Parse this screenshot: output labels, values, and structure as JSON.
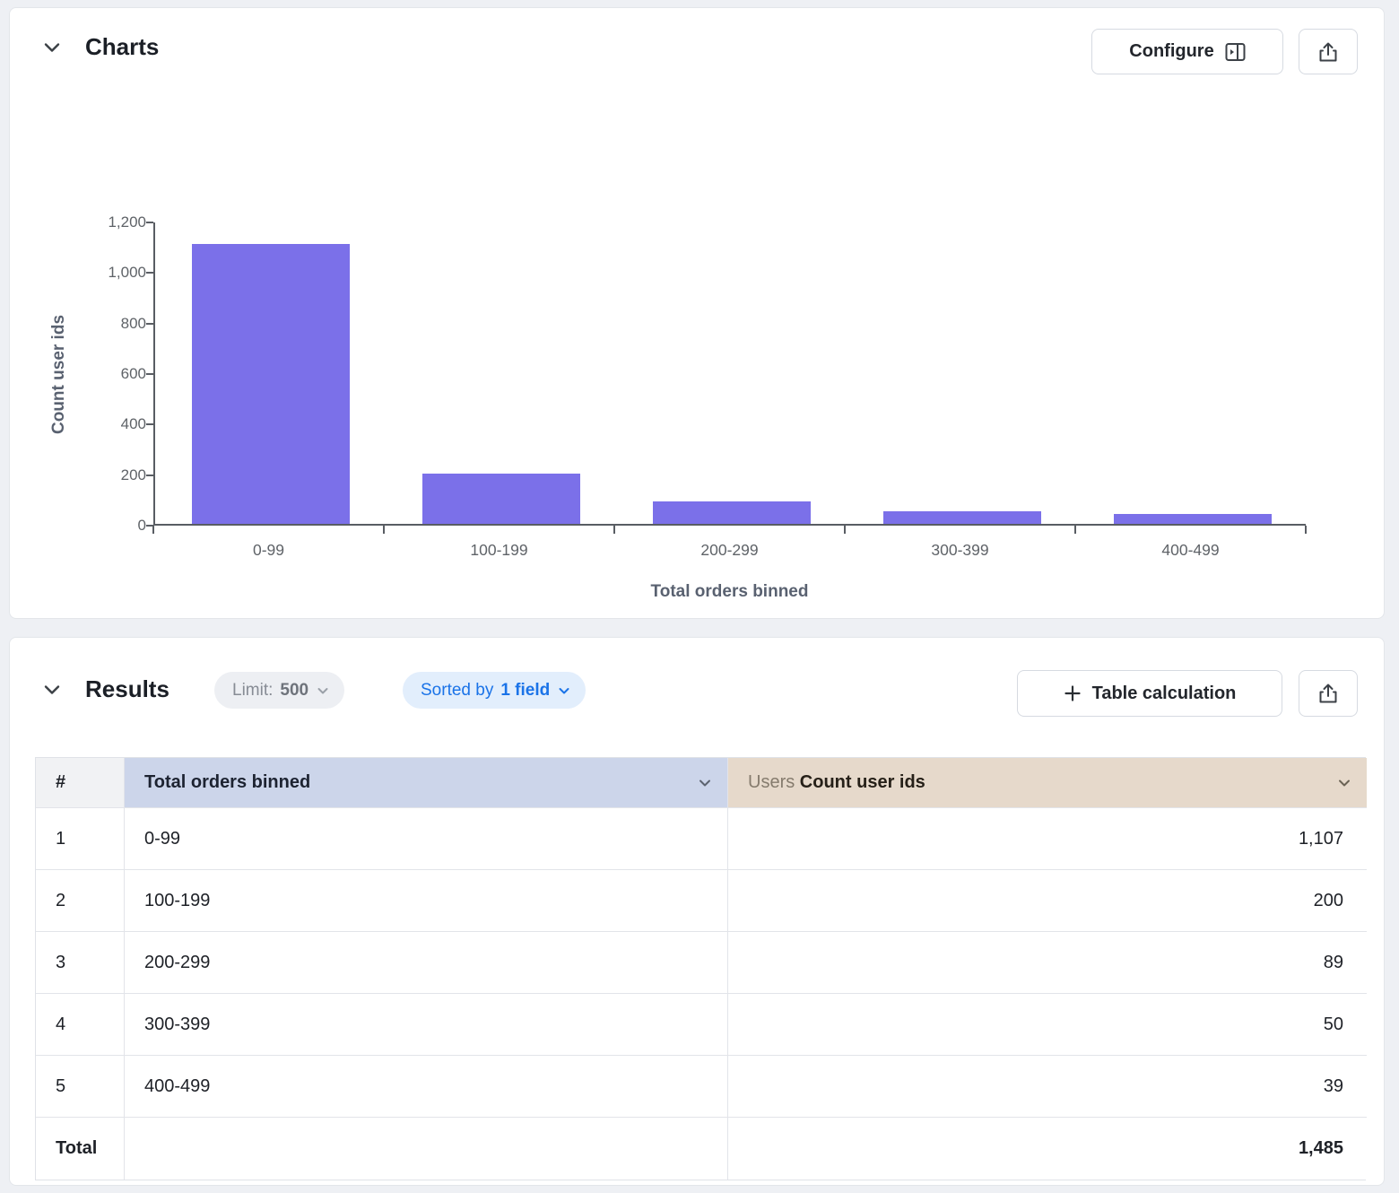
{
  "charts_panel": {
    "title": "Charts",
    "configure_label": "Configure"
  },
  "results_panel": {
    "title": "Results",
    "limit_label": "Limit:",
    "limit_value": "500",
    "sorted_label": "Sorted by",
    "sorted_value": "1 field",
    "table_calculation_label": "Table calculation"
  },
  "chart_data": {
    "type": "bar",
    "title": "",
    "categories": [
      "0-99",
      "100-199",
      "200-299",
      "300-399",
      "400-499"
    ],
    "values": [
      1107,
      200,
      89,
      50,
      39
    ],
    "xlabel": "Total orders binned",
    "ylabel": "Count user ids",
    "ylim": [
      0,
      1200
    ],
    "yticks": [
      0,
      200,
      400,
      600,
      800,
      1000,
      1200
    ],
    "bar_color": "#7b70e9",
    "grid": false,
    "legend": "none"
  },
  "table": {
    "headers": {
      "index": "#",
      "dimension": "Total orders binned",
      "measure_view": "Users",
      "measure": "Count user ids"
    },
    "rows": [
      {
        "index": "1",
        "bin": "0-99",
        "count": "1,107"
      },
      {
        "index": "2",
        "bin": "100-199",
        "count": "200"
      },
      {
        "index": "3",
        "bin": "200-299",
        "count": "89"
      },
      {
        "index": "4",
        "bin": "300-399",
        "count": "50"
      },
      {
        "index": "5",
        "bin": "400-499",
        "count": "39"
      }
    ],
    "total_label": "Total",
    "total_value": "1,485"
  }
}
